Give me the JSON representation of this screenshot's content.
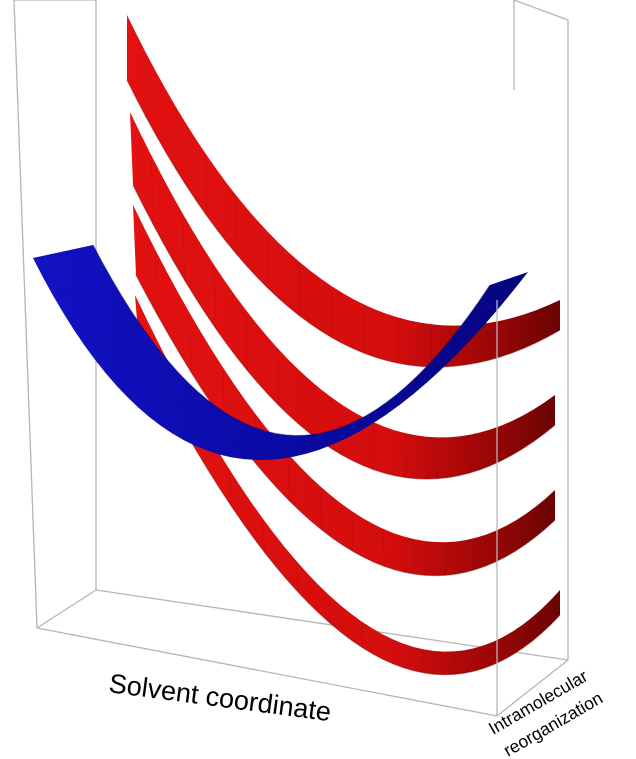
{
  "axes": {
    "x_label": "Solvent coordinate",
    "z_label_line1": "Intramolecular",
    "z_label_line2": "reorganization"
  },
  "colors": {
    "reactant_surface": "#0a0ab0",
    "reactant_surface_dark": "#02026a",
    "product_surfaces": "#e01010",
    "product_surfaces_dark": "#7a0404",
    "box_edges": "#b5b5b5",
    "text": "#000000"
  },
  "surfaces": {
    "reactant_count": 1,
    "product_count": 4
  }
}
